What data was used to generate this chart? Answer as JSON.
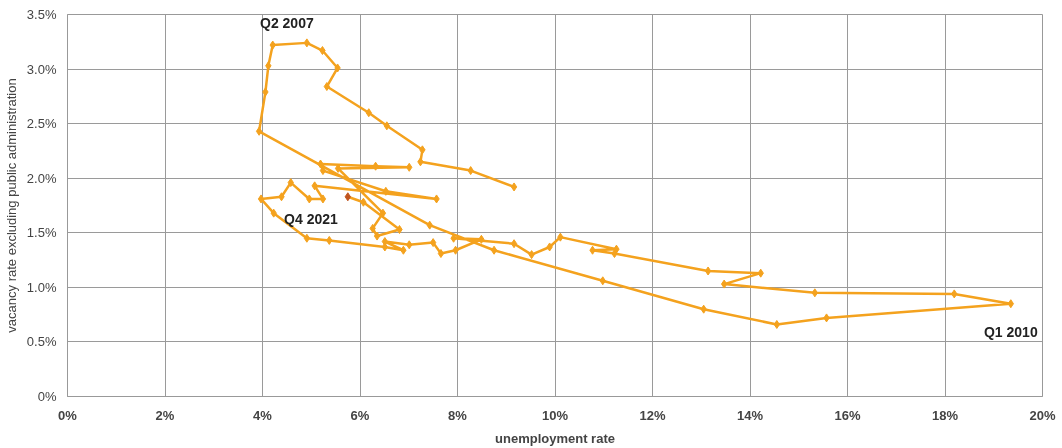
{
  "chart_data": {
    "type": "line",
    "xlabel": "unemployment rate",
    "ylabel": "vacancy rate excluding public administration",
    "marker": "diamond",
    "line_style": "solid",
    "grid": true,
    "xlim": [
      0,
      20
    ],
    "ylim": [
      0,
      3.5
    ],
    "xticks": [
      {
        "value": 0,
        "label": "0%"
      },
      {
        "value": 2,
        "label": "2%"
      },
      {
        "value": 4,
        "label": "4%"
      },
      {
        "value": 6,
        "label": "6%"
      },
      {
        "value": 8,
        "label": "8%"
      },
      {
        "value": 10,
        "label": "10%"
      },
      {
        "value": 12,
        "label": "12%"
      },
      {
        "value": 14,
        "label": "14%"
      },
      {
        "value": 16,
        "label": "16%"
      },
      {
        "value": 18,
        "label": "18%"
      },
      {
        "value": 20,
        "label": "20%"
      }
    ],
    "yticks": [
      {
        "value": 0,
        "label": "0%"
      },
      {
        "value": 0.5,
        "label": "0.5%"
      },
      {
        "value": 1,
        "label": "1.0%"
      },
      {
        "value": 1.5,
        "label": "1.5%"
      },
      {
        "value": 2,
        "label": "2.0%"
      },
      {
        "value": 2.5,
        "label": "2.5%"
      },
      {
        "value": 3,
        "label": "3.0%"
      },
      {
        "value": 3.5,
        "label": "3.5%"
      }
    ],
    "series": [
      {
        "color": "#f4a21e",
        "x": [
          9.16,
          8.27,
          7.24,
          7.28,
          6.55,
          6.18,
          5.32,
          5.54,
          5.23,
          4.91,
          4.21,
          4.12,
          4.06,
          3.93,
          7.43,
          8.75,
          10.98,
          13.05,
          14.55,
          15.57,
          19.35,
          18.19,
          15.33,
          13.47,
          14.22,
          13.14,
          11.22,
          10.77,
          11.26,
          10.11,
          9.89,
          9.52,
          9.16,
          7.92,
          8.49,
          7.96,
          7.66,
          7.5,
          7.01,
          6.51,
          6.89,
          6.51,
          5.37,
          4.91,
          4.23,
          3.97,
          4.39,
          4.58,
          4.96,
          5.24,
          5.07,
          7.57,
          6.53,
          5.24,
          5.19,
          6.32,
          7.01,
          5.55,
          6.47,
          6.26,
          6.35,
          6.81,
          6.07,
          5.75
        ],
        "values": [
          1.92,
          2.07,
          2.15,
          2.26,
          2.48,
          2.6,
          2.84,
          3.01,
          3.17,
          3.24,
          3.22,
          3.03,
          2.79,
          2.43,
          1.57,
          1.34,
          1.06,
          0.8,
          0.66,
          0.72,
          0.85,
          0.94,
          0.95,
          1.03,
          1.13,
          1.15,
          1.31,
          1.34,
          1.35,
          1.46,
          1.37,
          1.3,
          1.4,
          1.45,
          1.44,
          1.34,
          1.31,
          1.41,
          1.39,
          1.42,
          1.34,
          1.37,
          1.43,
          1.45,
          1.68,
          1.81,
          1.83,
          1.96,
          1.81,
          1.81,
          1.93,
          1.81,
          1.88,
          2.07,
          2.13,
          2.11,
          2.1,
          2.09,
          1.68,
          1.54,
          1.47,
          1.53,
          1.78,
          1.83
        ],
        "colors": [
          "#f4a21e",
          "#f4a21e",
          "#f4a21e",
          "#f4a21e",
          "#f4a21e",
          "#f4a21e",
          "#f4a21e",
          "#f4a21e",
          "#f4a21e",
          "#f4a21e",
          "#f4a21e",
          "#f4a21e",
          "#f4a21e",
          "#f4a21e",
          "#f4a21e",
          "#f4a21e",
          "#f4a21e",
          "#f4a21e",
          "#f4a21e",
          "#f4a21e",
          "#f4a21e",
          "#f4a21e",
          "#f4a21e",
          "#f4a21e",
          "#f4a21e",
          "#f4a21e",
          "#f4a21e",
          "#f4a21e",
          "#f4a21e",
          "#f4a21e",
          "#f4a21e",
          "#f4a21e",
          "#f4a21e",
          "#f4a21e",
          "#f4a21e",
          "#f4a21e",
          "#f4a21e",
          "#f4a21e",
          "#f4a21e",
          "#f4a21e",
          "#f4a21e",
          "#f4a21e",
          "#f4a21e",
          "#f4a21e",
          "#f4a21e",
          "#f4a21e",
          "#f4a21e",
          "#f4a21e",
          "#f4a21e",
          "#f4a21e",
          "#f4a21e",
          "#f4a21e",
          "#f4a21e",
          "#f4a21e",
          "#f4a21e",
          "#f4a21e",
          "#f4a21e",
          "#f4a21e",
          "#f4a21e",
          "#f4a21e",
          "#f4a21e",
          "#f4a21e",
          "#f4a21e",
          "#c0541e"
        ]
      }
    ],
    "annotations": [
      {
        "text": "Q2 2007",
        "x": 4.91,
        "y": 3.24
      },
      {
        "text": "Q1 2010",
        "x": 19.35,
        "y": 0.85
      },
      {
        "text": "Q4 2021",
        "x": 5.75,
        "y": 1.83
      }
    ]
  }
}
